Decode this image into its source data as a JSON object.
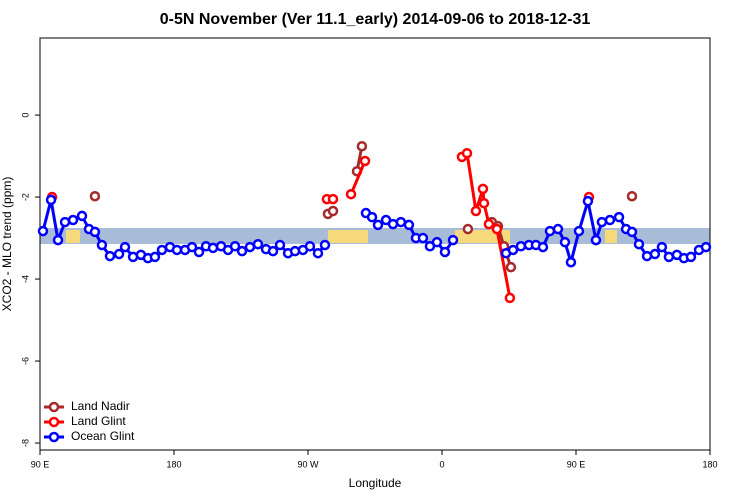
{
  "chart_data": {
    "type": "line",
    "title": "0-5N November (Ver 11.1_early)   2014-09-06 to 2018-12-31",
    "xlabel": "Longitude",
    "ylabel": "XCO2 - MLO trend (ppm)",
    "xlim": [
      90,
      540
    ],
    "ylim": [
      -8.17,
      1.88
    ],
    "xticks": [
      {
        "value": 90,
        "label": "90 E"
      },
      {
        "value": 180,
        "label": "180"
      },
      {
        "value": 270,
        "label": "90 W"
      },
      {
        "value": 360,
        "label": "0"
      },
      {
        "value": 450,
        "label": "90 E"
      },
      {
        "value": 540,
        "label": "180"
      }
    ],
    "yticks": [
      -8,
      -6,
      -4,
      -2,
      0
    ],
    "legend": "bottom-left",
    "series": [
      {
        "name": "Land Nadir",
        "color": "#a52a2a",
        "x": [
          126.9,
          null,
          283.4,
          286.8,
          null,
          302.9,
          306.2,
          null,
          377.4,
          null,
          393.5,
          397.6,
          401.6,
          406.3,
          null,
          487.6
        ],
        "values": [
          -1.98,
          null,
          -2.41,
          -2.34,
          null,
          -1.37,
          -0.76,
          null,
          -2.78,
          null,
          -2.61,
          -2.71,
          -3.2,
          -3.71,
          null,
          -1.98
        ]
      },
      {
        "name": "Land Glint",
        "color": "#ff0000",
        "x": [
          98.1,
          null,
          282.7,
          286.8,
          null,
          298.9,
          308.3,
          null,
          373.4,
          376.8,
          382.8,
          387.5,
          388.2,
          391.5,
          396.9,
          405.6,
          null,
          458.7
        ],
        "values": [
          -2.0,
          null,
          -2.05,
          -2.05,
          null,
          -1.93,
          -1.12,
          null,
          -1.02,
          -0.93,
          -2.34,
          -1.8,
          -2.15,
          -2.66,
          -2.78,
          -4.46,
          null,
          -2.0
        ]
      },
      {
        "name": "Ocean Glint",
        "color": "#0000ff",
        "x": [
          92.0,
          97.4,
          102.1,
          106.8,
          112.2,
          118.2,
          122.9,
          126.9,
          131.6,
          137.0,
          143.1,
          147.1,
          152.5,
          157.8,
          162.5,
          167.2,
          171.9,
          177.3,
          182.0,
          187.4,
          192.1,
          196.8,
          201.5,
          206.2,
          211.6,
          216.3,
          221.0,
          225.7,
          231.0,
          236.4,
          241.8,
          246.5,
          251.2,
          256.6,
          261.3,
          266.6,
          271.3,
          276.7,
          281.4,
          null,
          308.9,
          313.0,
          317.0,
          322.4,
          327.1,
          332.4,
          337.8,
          342.5,
          347.2,
          351.9,
          356.6,
          362.0,
          367.4,
          null,
          403.0,
          407.7,
          413.0,
          418.4,
          423.1,
          427.8,
          432.5,
          437.9,
          442.6,
          446.6,
          452.0,
          458.0,
          463.4,
          467.4,
          472.8,
          478.9,
          483.6,
          487.6,
          492.3,
          497.7,
          503.0,
          507.7,
          512.4,
          517.8,
          522.5,
          527.2,
          532.6,
          537.3
        ],
        "values": [
          -2.83,
          -2.07,
          -3.05,
          -2.61,
          -2.56,
          -2.46,
          -2.78,
          -2.85,
          -3.17,
          -3.44,
          -3.39,
          -3.22,
          -3.46,
          -3.41,
          -3.49,
          -3.46,
          -3.29,
          -3.22,
          -3.29,
          -3.29,
          -3.22,
          -3.34,
          -3.2,
          -3.24,
          -3.2,
          -3.29,
          -3.2,
          -3.32,
          -3.22,
          -3.15,
          -3.27,
          -3.32,
          -3.17,
          -3.37,
          -3.32,
          -3.29,
          -3.2,
          -3.37,
          -3.17,
          null,
          -2.39,
          -2.49,
          -2.68,
          -2.56,
          -2.66,
          -2.61,
          -2.68,
          -3.0,
          -3.0,
          -3.2,
          -3.1,
          -3.34,
          -3.05,
          null,
          -3.37,
          -3.29,
          -3.2,
          -3.17,
          -3.17,
          -3.22,
          -2.83,
          -2.78,
          -3.1,
          -3.59,
          -2.83,
          -2.1,
          -3.05,
          -2.61,
          -2.56,
          -2.49,
          -2.78,
          -2.85,
          -3.15,
          -3.44,
          -3.39,
          -3.22,
          -3.46,
          -3.41,
          -3.49,
          -3.46,
          -3.29,
          -3.22
        ]
      }
    ]
  }
}
